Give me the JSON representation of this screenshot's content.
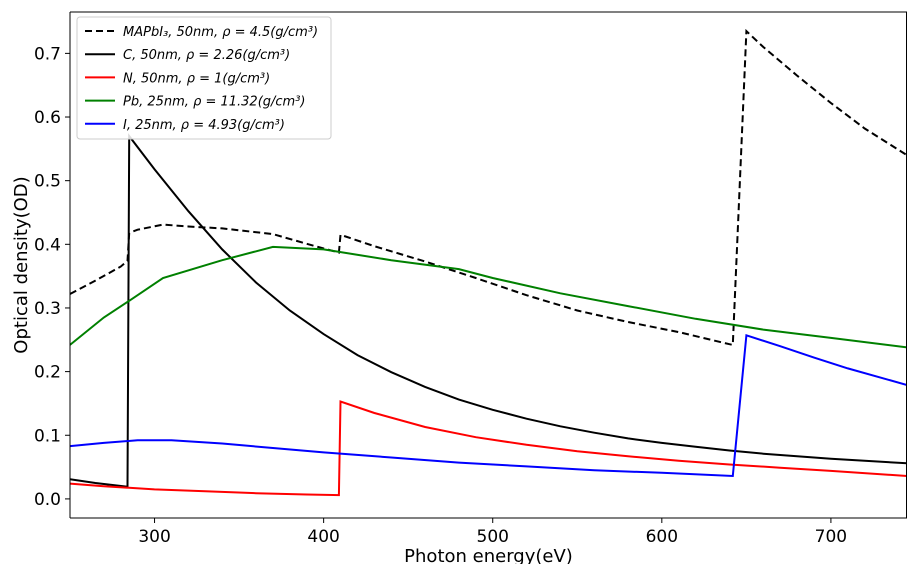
{
  "chart_data": {
    "type": "line",
    "xlabel": "Photon energy(eV)",
    "ylabel": "Optical density(OD)",
    "xlim": [
      250,
      745
    ],
    "ylim": [
      -0.03,
      0.765
    ],
    "x_ticks": [
      300,
      400,
      500,
      600,
      700
    ],
    "y_ticks": [
      0.0,
      0.1,
      0.2,
      0.3,
      0.4,
      0.5,
      0.6,
      0.7
    ],
    "legend_position": "top-left",
    "grid": false,
    "series": [
      {
        "name": "MAPbI₃, 50nm, ρ = 4.5(g/cm³)",
        "color": "#000000",
        "dash": true,
        "points": [
          [
            250,
            0.322
          ],
          [
            265,
            0.343
          ],
          [
            280,
            0.365
          ],
          [
            284,
            0.374
          ],
          [
            285,
            0.418
          ],
          [
            290,
            0.423
          ],
          [
            305,
            0.431
          ],
          [
            320,
            0.428
          ],
          [
            340,
            0.425
          ],
          [
            370,
            0.416
          ],
          [
            395,
            0.397
          ],
          [
            409,
            0.387
          ],
          [
            410,
            0.415
          ],
          [
            430,
            0.397
          ],
          [
            460,
            0.373
          ],
          [
            490,
            0.347
          ],
          [
            520,
            0.32
          ],
          [
            550,
            0.296
          ],
          [
            580,
            0.278
          ],
          [
            610,
            0.262
          ],
          [
            640,
            0.243
          ],
          [
            642,
            0.242
          ],
          [
            650,
            0.735
          ],
          [
            660,
            0.71
          ],
          [
            680,
            0.665
          ],
          [
            700,
            0.622
          ],
          [
            720,
            0.582
          ],
          [
            745,
            0.54
          ]
        ]
      },
      {
        "name": "C, 50nm, ρ = 2.26(g/cm³)",
        "color": "#000000",
        "dash": false,
        "points": [
          [
            250,
            0.031
          ],
          [
            265,
            0.025
          ],
          [
            284,
            0.019
          ],
          [
            285,
            0.57
          ],
          [
            300,
            0.518
          ],
          [
            320,
            0.452
          ],
          [
            340,
            0.392
          ],
          [
            360,
            0.34
          ],
          [
            380,
            0.296
          ],
          [
            400,
            0.259
          ],
          [
            420,
            0.226
          ],
          [
            440,
            0.199
          ],
          [
            460,
            0.176
          ],
          [
            480,
            0.156
          ],
          [
            500,
            0.14
          ],
          [
            520,
            0.126
          ],
          [
            540,
            0.114
          ],
          [
            560,
            0.104
          ],
          [
            580,
            0.095
          ],
          [
            600,
            0.088
          ],
          [
            620,
            0.082
          ],
          [
            640,
            0.076
          ],
          [
            660,
            0.071
          ],
          [
            680,
            0.067
          ],
          [
            700,
            0.063
          ],
          [
            720,
            0.06
          ],
          [
            745,
            0.056
          ]
        ]
      },
      {
        "name": "N, 50nm, ρ = 1(g/cm³)",
        "color": "#ff0000",
        "dash": false,
        "points": [
          [
            250,
            0.024
          ],
          [
            270,
            0.02
          ],
          [
            300,
            0.015
          ],
          [
            330,
            0.012
          ],
          [
            360,
            0.009
          ],
          [
            390,
            0.007
          ],
          [
            409,
            0.006
          ],
          [
            410,
            0.153
          ],
          [
            430,
            0.135
          ],
          [
            460,
            0.113
          ],
          [
            490,
            0.097
          ],
          [
            520,
            0.085
          ],
          [
            550,
            0.075
          ],
          [
            580,
            0.067
          ],
          [
            610,
            0.06
          ],
          [
            640,
            0.054
          ],
          [
            670,
            0.049
          ],
          [
            700,
            0.044
          ],
          [
            745,
            0.036
          ]
        ]
      },
      {
        "name": "Pb, 25nm, ρ = 11.32(g/cm³)",
        "color": "#008000",
        "dash": false,
        "points": [
          [
            250,
            0.242
          ],
          [
            270,
            0.285
          ],
          [
            286,
            0.313
          ],
          [
            305,
            0.347
          ],
          [
            340,
            0.375
          ],
          [
            370,
            0.396
          ],
          [
            400,
            0.392
          ],
          [
            440,
            0.375
          ],
          [
            480,
            0.361
          ],
          [
            500,
            0.347
          ],
          [
            540,
            0.323
          ],
          [
            580,
            0.303
          ],
          [
            620,
            0.283
          ],
          [
            660,
            0.266
          ],
          [
            700,
            0.253
          ],
          [
            745,
            0.238
          ]
        ]
      },
      {
        "name": "I, 25nm, ρ = 4.93(g/cm³)",
        "color": "#0000ff",
        "dash": false,
        "points": [
          [
            250,
            0.083
          ],
          [
            270,
            0.088
          ],
          [
            290,
            0.092
          ],
          [
            310,
            0.092
          ],
          [
            340,
            0.087
          ],
          [
            370,
            0.08
          ],
          [
            400,
            0.073
          ],
          [
            440,
            0.065
          ],
          [
            480,
            0.057
          ],
          [
            520,
            0.051
          ],
          [
            560,
            0.045
          ],
          [
            600,
            0.041
          ],
          [
            642,
            0.036
          ],
          [
            650,
            0.257
          ],
          [
            670,
            0.24
          ],
          [
            690,
            0.222
          ],
          [
            710,
            0.205
          ],
          [
            745,
            0.179
          ]
        ]
      }
    ]
  }
}
